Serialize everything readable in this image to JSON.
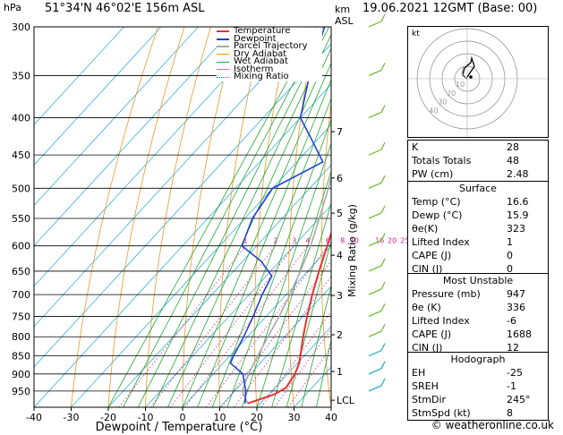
{
  "header": {
    "hpa": "hPa",
    "location": "51°34'N 46°02'E 156m ASL",
    "km": "km",
    "asl": "ASL",
    "datetime": "19.06.2021 12GMT (Base: 00)"
  },
  "chart_data": {
    "type": "skew-t",
    "xlabel": "Dewpoint / Temperature (°C)",
    "ylabel_right": "Mixing Ratio (g/kg)",
    "x_ticks": [
      -40,
      -30,
      -20,
      -10,
      0,
      10,
      20,
      30,
      40
    ],
    "pressure_levels": [
      300,
      350,
      400,
      450,
      500,
      550,
      600,
      650,
      700,
      750,
      800,
      850,
      900,
      950
    ],
    "km_ticks": [
      {
        "label": "7",
        "p": 418
      },
      {
        "label": "6",
        "p": 484
      },
      {
        "label": "5",
        "p": 541
      },
      {
        "label": "4",
        "p": 618
      },
      {
        "label": "3",
        "p": 702
      },
      {
        "label": "2",
        "p": 795
      },
      {
        "label": "1",
        "p": 893
      },
      {
        "label": "LCL",
        "p": 978
      }
    ],
    "mixing_ratio_labels": [
      "1",
      "2",
      "3",
      "4",
      "6",
      "8",
      "10",
      "16",
      "20",
      "25"
    ],
    "legend": [
      "Temperature",
      "Dewpoint",
      "Parcel Trajectory",
      "Dry Adiabat",
      "Wet Adiabat",
      "Isotherm",
      "Mixing Ratio"
    ],
    "series": [
      {
        "name": "Temperature",
        "color": "#e8322e",
        "points": [
          [
            988,
            16.6
          ],
          [
            960,
            21.5
          ],
          [
            940,
            23.0
          ],
          [
            900,
            22.0
          ],
          [
            870,
            20.5
          ],
          [
            850,
            19.0
          ],
          [
            800,
            15.0
          ],
          [
            750,
            11.0
          ],
          [
            700,
            7.0
          ],
          [
            650,
            3.0
          ],
          [
            600,
            -1.0
          ],
          [
            550,
            -5.5
          ],
          [
            500,
            -11.0
          ],
          [
            450,
            -17.0
          ],
          [
            400,
            -24.0
          ],
          [
            350,
            -32.0
          ],
          [
            300,
            -41.0
          ]
        ]
      },
      {
        "name": "Dewpoint",
        "color": "#2040d8",
        "points": [
          [
            988,
            15.9
          ],
          [
            950,
            13.0
          ],
          [
            900,
            8.0
          ],
          [
            870,
            2.0
          ],
          [
            850,
            1.0
          ],
          [
            800,
            -1.0
          ],
          [
            750,
            -3.5
          ],
          [
            700,
            -6.5
          ],
          [
            660,
            -8.5
          ],
          [
            630,
            -15.0
          ],
          [
            600,
            -24.0
          ],
          [
            550,
            -28.0
          ],
          [
            500,
            -30.0
          ],
          [
            460,
            -23.0
          ],
          [
            420,
            -34.0
          ],
          [
            400,
            -40.0
          ],
          [
            350,
            -48.0
          ],
          [
            300,
            -56.0
          ]
        ]
      },
      {
        "name": "Parcel Trajectory",
        "color": "#a8a8a8",
        "points": [
          [
            988,
            16.6
          ],
          [
            950,
            12.0
          ],
          [
            900,
            9.5
          ],
          [
            850,
            7.5
          ],
          [
            800,
            5.5
          ],
          [
            750,
            3.5
          ],
          [
            700,
            1.0
          ],
          [
            650,
            -2.0
          ],
          [
            600,
            -5.5
          ],
          [
            550,
            -10.0
          ],
          [
            500,
            -15.0
          ],
          [
            450,
            -21.0
          ],
          [
            400,
            -28.0
          ],
          [
            350,
            -36.0
          ],
          [
            300,
            -45.0
          ]
        ]
      }
    ],
    "hodograph": {
      "label": "kt",
      "rings": [
        "10",
        "20",
        "30",
        "40"
      ]
    }
  },
  "indices": [
    {
      "k": "K",
      "v": "28"
    },
    {
      "k": "Totals Totals",
      "v": "48"
    },
    {
      "k": "PW (cm)",
      "v": "2.48"
    }
  ],
  "surface": {
    "title": "Surface",
    "rows": [
      {
        "k": "Temp (°C)",
        "v": "16.6"
      },
      {
        "k": "Dewp (°C)",
        "v": "15.9"
      },
      {
        "k": "θe(K)",
        "v": "323"
      },
      {
        "k": "Lifted Index",
        "v": "1"
      },
      {
        "k": "CAPE (J)",
        "v": "0"
      },
      {
        "k": "CIN (J)",
        "v": "0"
      }
    ]
  },
  "unstable": {
    "title": "Most Unstable",
    "rows": [
      {
        "k": "Pressure (mb)",
        "v": "947"
      },
      {
        "k": "θe (K)",
        "v": "336"
      },
      {
        "k": "Lifted Index",
        "v": "-6"
      },
      {
        "k": "CAPE (J)",
        "v": "1688"
      },
      {
        "k": "CIN (J)",
        "v": "12"
      }
    ]
  },
  "hodo_table": {
    "title": "Hodograph",
    "rows": [
      {
        "k": "EH",
        "v": "-25"
      },
      {
        "k": "SREH",
        "v": "-1"
      },
      {
        "k": "StmDir",
        "v": "245°"
      },
      {
        "k": "StmSpd (kt)",
        "v": "8"
      }
    ]
  },
  "footer": "© weatheronline.co.uk",
  "colors": {
    "temperature": "#e8322e",
    "dewpoint": "#2040d8",
    "parcel": "#a8a8a8",
    "dry_adiabat": "#e8962a",
    "wet_adiabat": "#22a830",
    "isotherm": "#38b0e0",
    "mixing_ratio": "#d0208c"
  }
}
